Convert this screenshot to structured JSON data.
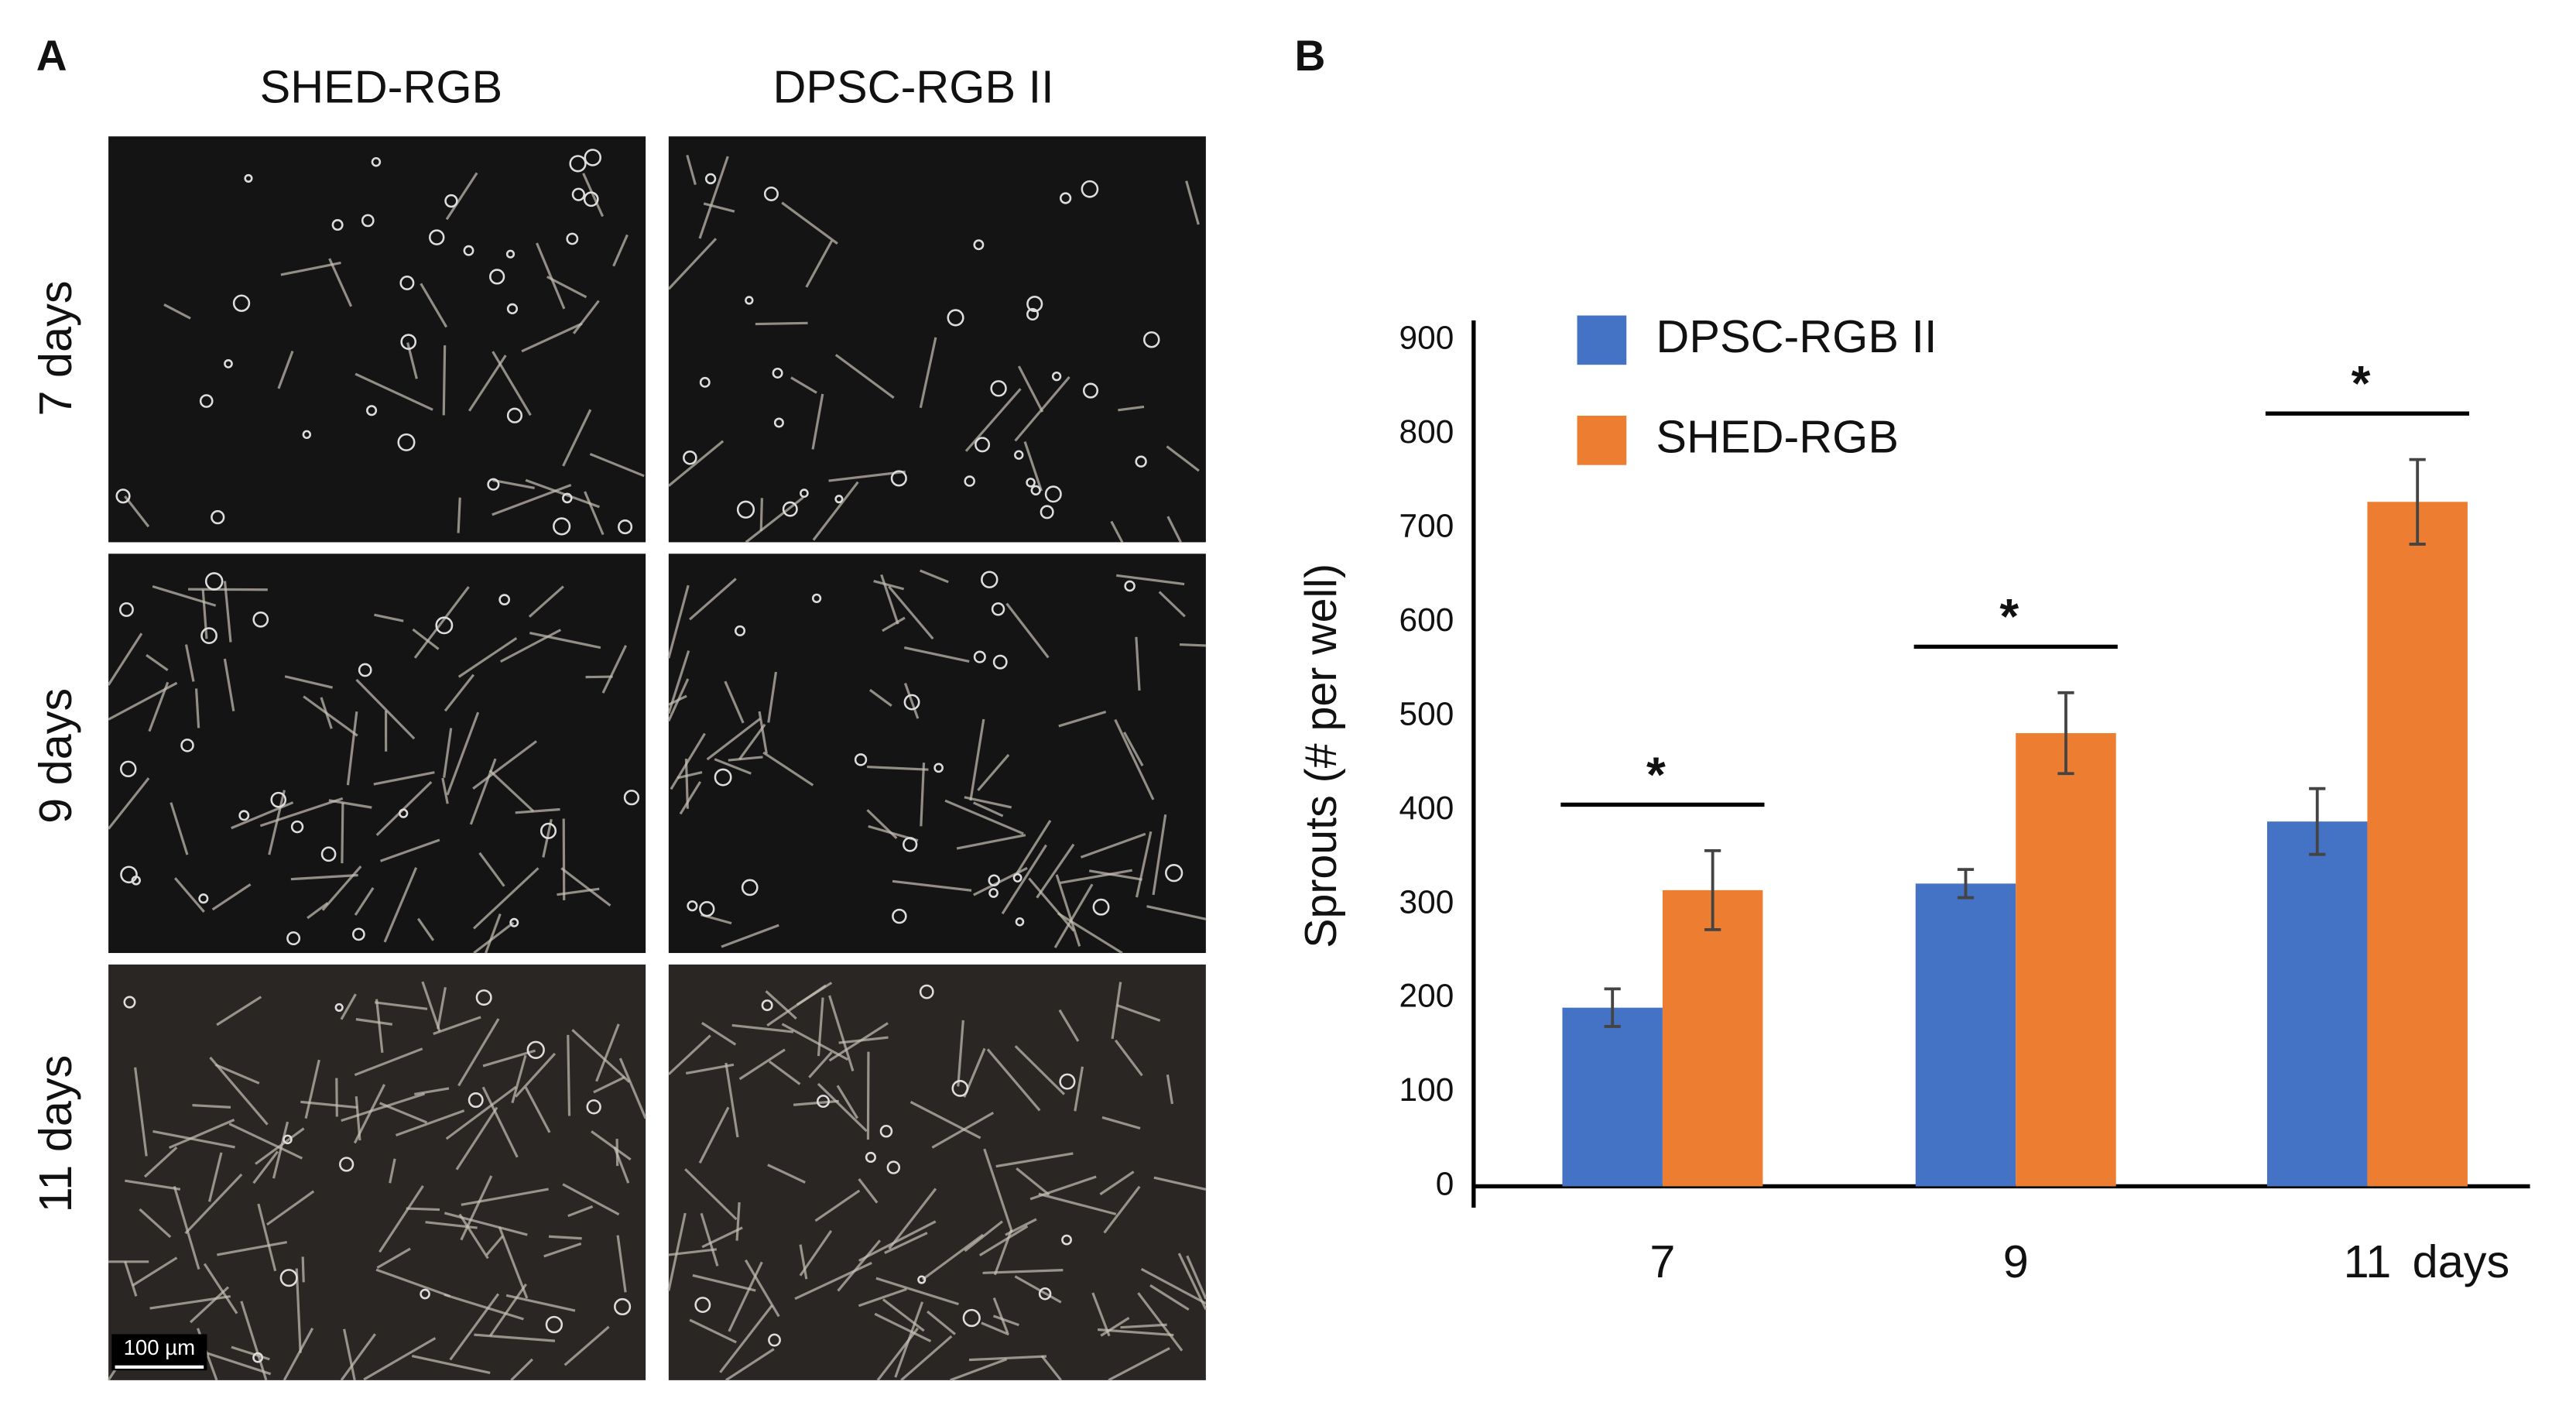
{
  "panel_a": {
    "label": "A",
    "columns": [
      "SHED-RGB",
      "DPSC-RGB II"
    ],
    "rows": [
      "7 days",
      "9 days",
      "11 days"
    ],
    "scale_bar": "100 µm"
  },
  "chart_data": {
    "type": "bar",
    "panel_label": "B",
    "ylabel": "Sprouts (# per well)",
    "xlabel": "days",
    "categories": [
      "7",
      "9",
      "11"
    ],
    "series": [
      {
        "name": "DPSC-RGB II",
        "color": "#4472c4",
        "values": [
          190,
          322,
          388
        ],
        "errors": [
          20,
          15,
          35
        ]
      },
      {
        "name": "SHED-RGB",
        "color": "#ed7d31",
        "values": [
          315,
          482,
          728
        ],
        "errors": [
          42,
          43,
          45
        ]
      }
    ],
    "annotations": [
      "*",
      "*",
      "*"
    ],
    "ylim": [
      0,
      900
    ],
    "yticks": [
      0,
      100,
      200,
      300,
      400,
      500,
      600,
      700,
      800,
      900
    ]
  }
}
